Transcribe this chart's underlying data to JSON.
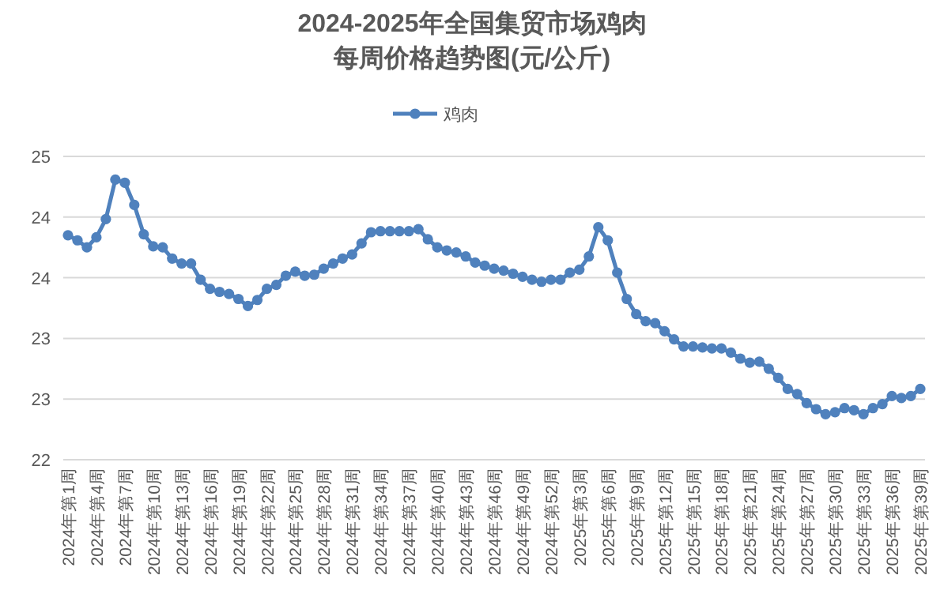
{
  "chart_data": {
    "type": "line",
    "title": "2024-2025年全国集贸市场鸡肉",
    "subtitle": "每周价格趋势图(元/公斤)",
    "categories": [
      "2024年第1周",
      null,
      null,
      "2024年第4周",
      null,
      null,
      "2024年第7周",
      null,
      null,
      "2024年第10周",
      null,
      null,
      "2024年第13周",
      null,
      null,
      "2024年第16周",
      null,
      null,
      "2024年第19周",
      null,
      null,
      "2024年第22周",
      null,
      null,
      "2024年第25周",
      null,
      null,
      "2024年第28周",
      null,
      null,
      "2024年第31周",
      null,
      null,
      "2024年第34周",
      null,
      null,
      "2024年第37周",
      null,
      null,
      "2024年第40周",
      null,
      null,
      "2024年第43周",
      null,
      null,
      "2024年第46周",
      null,
      null,
      "2024年第49周",
      null,
      null,
      "2024年第52周",
      null,
      null,
      "2025年第3周",
      null,
      null,
      "2025年第6周",
      null,
      null,
      "2025年第9周",
      null,
      null,
      "2025年第12周",
      null,
      null,
      "2025年第15周",
      null,
      null,
      "2025年第18周",
      null,
      null,
      "2025年第21周",
      null,
      null,
      "2025年第24周",
      null,
      null,
      "2025年第27周",
      null,
      null,
      "2025年第30周",
      null,
      null,
      "2025年第33周",
      null,
      null,
      "2025年第36周",
      null,
      null,
      "2025年第39周"
    ],
    "series": [
      {
        "name": "鸡肉",
        "color": "#4f81bd",
        "values": [
          24.22,
          24.17,
          24.1,
          24.2,
          24.38,
          24.77,
          24.74,
          24.52,
          24.23,
          24.11,
          24.1,
          23.99,
          23.94,
          23.94,
          23.78,
          23.69,
          23.66,
          23.64,
          23.59,
          23.52,
          23.58,
          23.69,
          23.73,
          23.82,
          23.86,
          23.82,
          23.83,
          23.89,
          23.94,
          23.99,
          24.03,
          24.14,
          24.25,
          24.26,
          24.26,
          24.26,
          24.26,
          24.28,
          24.18,
          24.1,
          24.07,
          24.05,
          24.01,
          23.95,
          23.92,
          23.89,
          23.87,
          23.84,
          23.81,
          23.78,
          23.76,
          23.78,
          23.78,
          23.85,
          23.88,
          24.01,
          24.3,
          24.17,
          23.85,
          23.59,
          23.44,
          23.37,
          23.35,
          23.27,
          23.19,
          23.12,
          23.12,
          23.11,
          23.1,
          23.1,
          23.06,
          23.0,
          22.96,
          22.97,
          22.9,
          22.81,
          22.7,
          22.65,
          22.56,
          22.5,
          22.45,
          22.47,
          22.51,
          22.49,
          22.45,
          22.51,
          22.55,
          22.63,
          22.61,
          22.63,
          22.7
        ]
      }
    ],
    "ylim": [
      22,
      25
    ],
    "yticks": [
      22,
      {
        "value": 22.6,
        "label": "23"
      },
      {
        "value": 23.2,
        "label": "23"
      },
      {
        "value": 23.8,
        "label": "24"
      },
      {
        "value": 24.4,
        "label": "24"
      },
      25
    ],
    "grid": "y",
    "legend": "top",
    "marker": "circle",
    "line_style": "solid"
  }
}
